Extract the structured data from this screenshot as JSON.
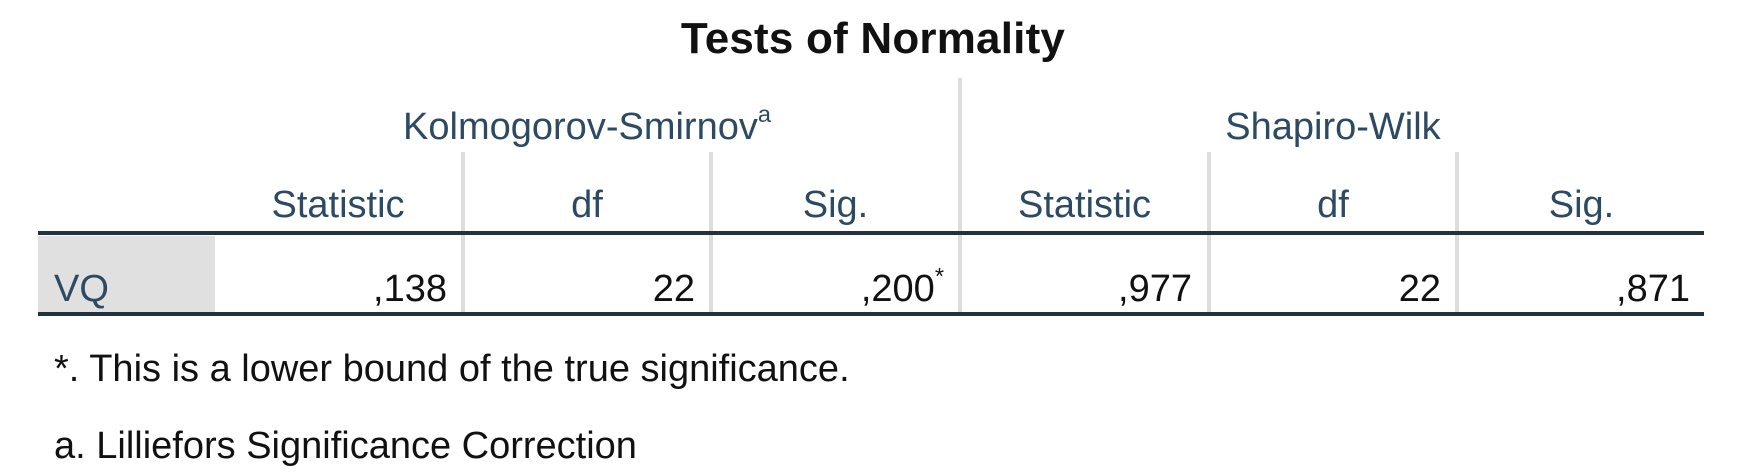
{
  "title": "Tests of Normality",
  "groups": [
    {
      "label": "Kolmogorov-Smirnov",
      "sup": "a"
    },
    {
      "label": "Shapiro-Wilk",
      "sup": ""
    }
  ],
  "columns": [
    "Statistic",
    "df",
    "Sig.",
    "Statistic",
    "df",
    "Sig."
  ],
  "rows": [
    {
      "label": "VQ",
      "cells": [
        {
          "value": ",138",
          "sup": ""
        },
        {
          "value": "22",
          "sup": ""
        },
        {
          "value": ",200",
          "sup": "*"
        },
        {
          "value": ",977",
          "sup": ""
        },
        {
          "value": "22",
          "sup": ""
        },
        {
          "value": ",871",
          "sup": ""
        }
      ]
    }
  ],
  "footnotes": [
    "*. This is a lower bound of the true significance.",
    "a. Lilliefors Significance Correction"
  ],
  "colors": {
    "header_text": "#2c4a63",
    "rule": "#233140",
    "divider": "#dddddd",
    "row_label_bg": "#e0e0e0"
  }
}
